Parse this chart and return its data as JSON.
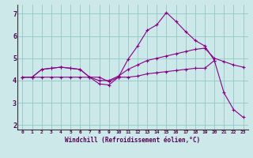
{
  "bg_color": "#cce8e8",
  "grid_color": "#99cccc",
  "line_color": "#880088",
  "xlim": [
    -0.5,
    23.5
  ],
  "ylim": [
    1.8,
    7.4
  ],
  "yticks": [
    2,
    3,
    4,
    5,
    6,
    7
  ],
  "xticks": [
    0,
    1,
    2,
    3,
    4,
    5,
    6,
    7,
    8,
    9,
    10,
    11,
    12,
    13,
    14,
    15,
    16,
    17,
    18,
    19,
    20,
    21,
    22,
    23
  ],
  "xlabel": "Windchill (Refroidissement éolien,°C)",
  "line1_x": [
    0,
    1,
    2,
    3,
    4,
    5,
    6,
    7,
    8,
    9,
    10,
    11,
    12,
    13,
    14,
    15,
    16,
    17,
    18,
    19,
    20
  ],
  "line1_y": [
    4.15,
    4.15,
    4.5,
    4.55,
    4.6,
    4.55,
    4.5,
    4.15,
    4.15,
    3.95,
    4.15,
    4.95,
    5.55,
    6.25,
    6.5,
    7.05,
    6.65,
    6.2,
    5.8,
    5.55,
    4.9
  ],
  "line2_x": [
    0,
    1,
    2,
    3,
    4,
    5,
    6,
    7,
    8,
    9,
    10,
    11,
    12,
    13,
    14,
    15,
    16,
    17,
    18,
    19,
    20,
    21,
    22,
    23
  ],
  "line2_y": [
    4.15,
    4.15,
    4.5,
    4.55,
    4.6,
    4.55,
    4.5,
    4.15,
    4.0,
    4.0,
    4.2,
    4.5,
    4.7,
    4.9,
    5.0,
    5.1,
    5.2,
    5.3,
    5.4,
    5.45,
    5.0,
    4.85,
    4.7,
    4.6
  ],
  "line3_x": [
    0,
    1,
    2,
    3,
    4,
    5,
    6,
    7,
    8,
    9,
    10,
    11,
    12,
    13,
    14,
    15,
    16,
    17,
    18,
    19,
    20,
    21,
    22,
    23
  ],
  "line3_y": [
    4.15,
    4.15,
    4.15,
    4.15,
    4.15,
    4.15,
    4.15,
    4.15,
    3.85,
    3.8,
    4.15,
    4.15,
    4.2,
    4.3,
    4.35,
    4.4,
    4.45,
    4.5,
    4.55,
    4.55,
    4.9,
    3.45,
    2.7,
    2.35
  ]
}
